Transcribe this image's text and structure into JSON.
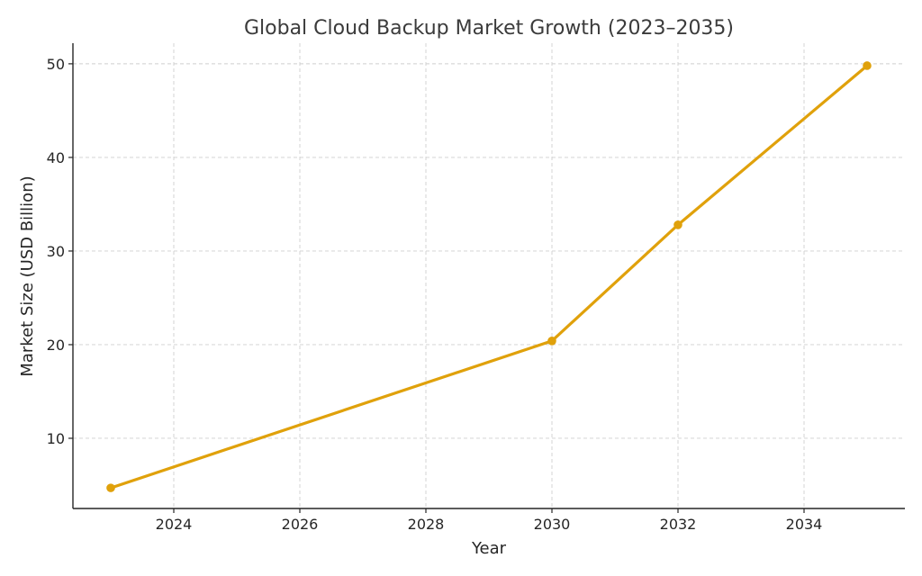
{
  "chart_data": {
    "type": "line",
    "title": "Global Cloud Backup Market Growth (2023–2035)",
    "xlabel": "Year",
    "ylabel": "Market Size (USD Billion)",
    "xlim": [
      2022.4,
      2035.6
    ],
    "ylim": [
      2.5,
      52.2
    ],
    "xticks": [
      2024,
      2026,
      2028,
      2030,
      2032,
      2034
    ],
    "yticks": [
      10,
      20,
      30,
      40,
      50
    ],
    "grid": true,
    "series": [
      {
        "x": [
          2023,
          2030,
          2032,
          2035
        ],
        "y": [
          4.7,
          20.4,
          32.8,
          49.8
        ],
        "color": "#e0a10b",
        "marker": "circle"
      }
    ]
  }
}
